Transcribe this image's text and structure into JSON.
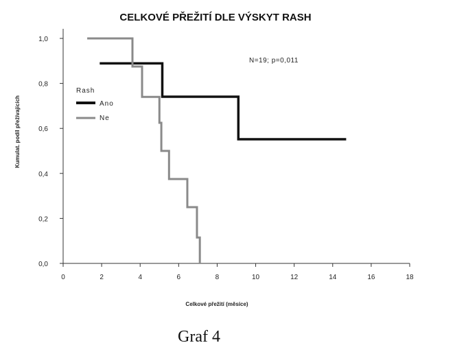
{
  "chart_data": {
    "type": "line",
    "title": "CELKOVÉ PŘEŽITÍ DLE VÝSKYT RASH",
    "xlabel": "Celkové přežití (měsíce)",
    "ylabel": "Kumulat. podíl přežívajících",
    "xlim": [
      0,
      18
    ],
    "ylim": [
      0,
      1
    ],
    "x_ticks": [
      "0",
      "2",
      "4",
      "6",
      "8",
      "10",
      "12",
      "14",
      "16",
      "18"
    ],
    "y_ticks": [
      "0,0",
      "0,2",
      "0,4",
      "0,6",
      "0,8",
      "1,0"
    ],
    "legend_title": "Rash",
    "annotation": "N=19; p=0,011",
    "grid": false,
    "legend_position": "upper-left",
    "series": [
      {
        "name": "Ano",
        "color": "#111111",
        "points": [
          [
            1.9,
            0.889
          ],
          [
            5.15,
            0.889
          ],
          [
            5.15,
            0.741
          ],
          [
            9.1,
            0.741
          ],
          [
            9.1,
            0.552
          ],
          [
            14.7,
            0.552
          ]
        ]
      },
      {
        "name": "Ne",
        "color": "#8a8a8a",
        "points": [
          [
            1.25,
            1.0
          ],
          [
            3.6,
            1.0
          ],
          [
            3.6,
            0.875
          ],
          [
            4.1,
            0.875
          ],
          [
            4.1,
            0.74
          ],
          [
            5.0,
            0.74
          ],
          [
            5.0,
            0.625
          ],
          [
            5.1,
            0.625
          ],
          [
            5.1,
            0.5
          ],
          [
            5.5,
            0.5
          ],
          [
            5.5,
            0.375
          ],
          [
            6.45,
            0.375
          ],
          [
            6.45,
            0.25
          ],
          [
            6.95,
            0.25
          ],
          [
            6.95,
            0.115
          ],
          [
            7.1,
            0.115
          ],
          [
            7.1,
            0.0
          ]
        ]
      }
    ]
  },
  "caption": "Graf 4"
}
